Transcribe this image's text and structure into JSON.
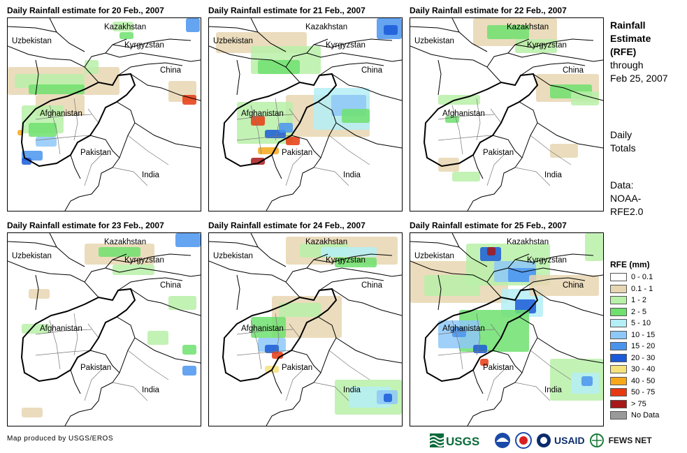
{
  "panels": [
    {
      "title": "Daily Rainfall estimate for 20 Feb., 2007"
    },
    {
      "title": "Daily Rainfall estimate for 21 Feb., 2007"
    },
    {
      "title": "Daily Rainfall estimate for 22 Feb., 2007"
    },
    {
      "title": "Daily Rainfall estimate for 23 Feb., 2007"
    },
    {
      "title": "Daily Rainfall estimate for 24 Feb., 2007"
    },
    {
      "title": "Daily Rainfall estimate for 25 Feb., 2007"
    }
  ],
  "country_labels": {
    "kazakhstan": "Kazakhstan",
    "uzbekistan": "Uzbekistan",
    "kyrgyzstan": "Kyrgyzstan",
    "china": "China",
    "afghanistan": "Afghanistan",
    "pakistan": "Pakistan",
    "india": "India"
  },
  "sidebar": {
    "title_line1": "Rainfall",
    "title_line2": "Estimate",
    "title_line3": "(RFE)",
    "through_line1": "through",
    "through_line2": "Feb 25, 2007",
    "daily_line1": "Daily",
    "daily_line2": "Totals",
    "data_line1": "Data:",
    "data_line2": "NOAA-",
    "data_line3": "RFE2.0"
  },
  "legend": {
    "title": "RFE (mm)",
    "items": [
      {
        "label": "0 - 0.1",
        "color": "#ffffff"
      },
      {
        "label": "0.1 - 1",
        "color": "#e8d6b2"
      },
      {
        "label": "1 - 2",
        "color": "#b8f0a8"
      },
      {
        "label": "2 - 5",
        "color": "#6ee06e"
      },
      {
        "label": "5 - 10",
        "color": "#b4eef6"
      },
      {
        "label": "10 - 15",
        "color": "#8ec8f8"
      },
      {
        "label": "15 - 20",
        "color": "#4a94ee"
      },
      {
        "label": "20 - 30",
        "color": "#1a5ad8"
      },
      {
        "label": "30 - 40",
        "color": "#f6e27a"
      },
      {
        "label": "40 - 50",
        "color": "#f6a81a"
      },
      {
        "label": "50 - 75",
        "color": "#e83a12"
      },
      {
        "label": "> 75",
        "color": "#a81818"
      },
      {
        "label": "No Data",
        "color": "#9a9a9a"
      }
    ]
  },
  "credit": "Map produced by USGS/EROS",
  "logos": {
    "usgs": "USGS",
    "usaid": "USAID",
    "fewsnet": "FEWS NET"
  }
}
